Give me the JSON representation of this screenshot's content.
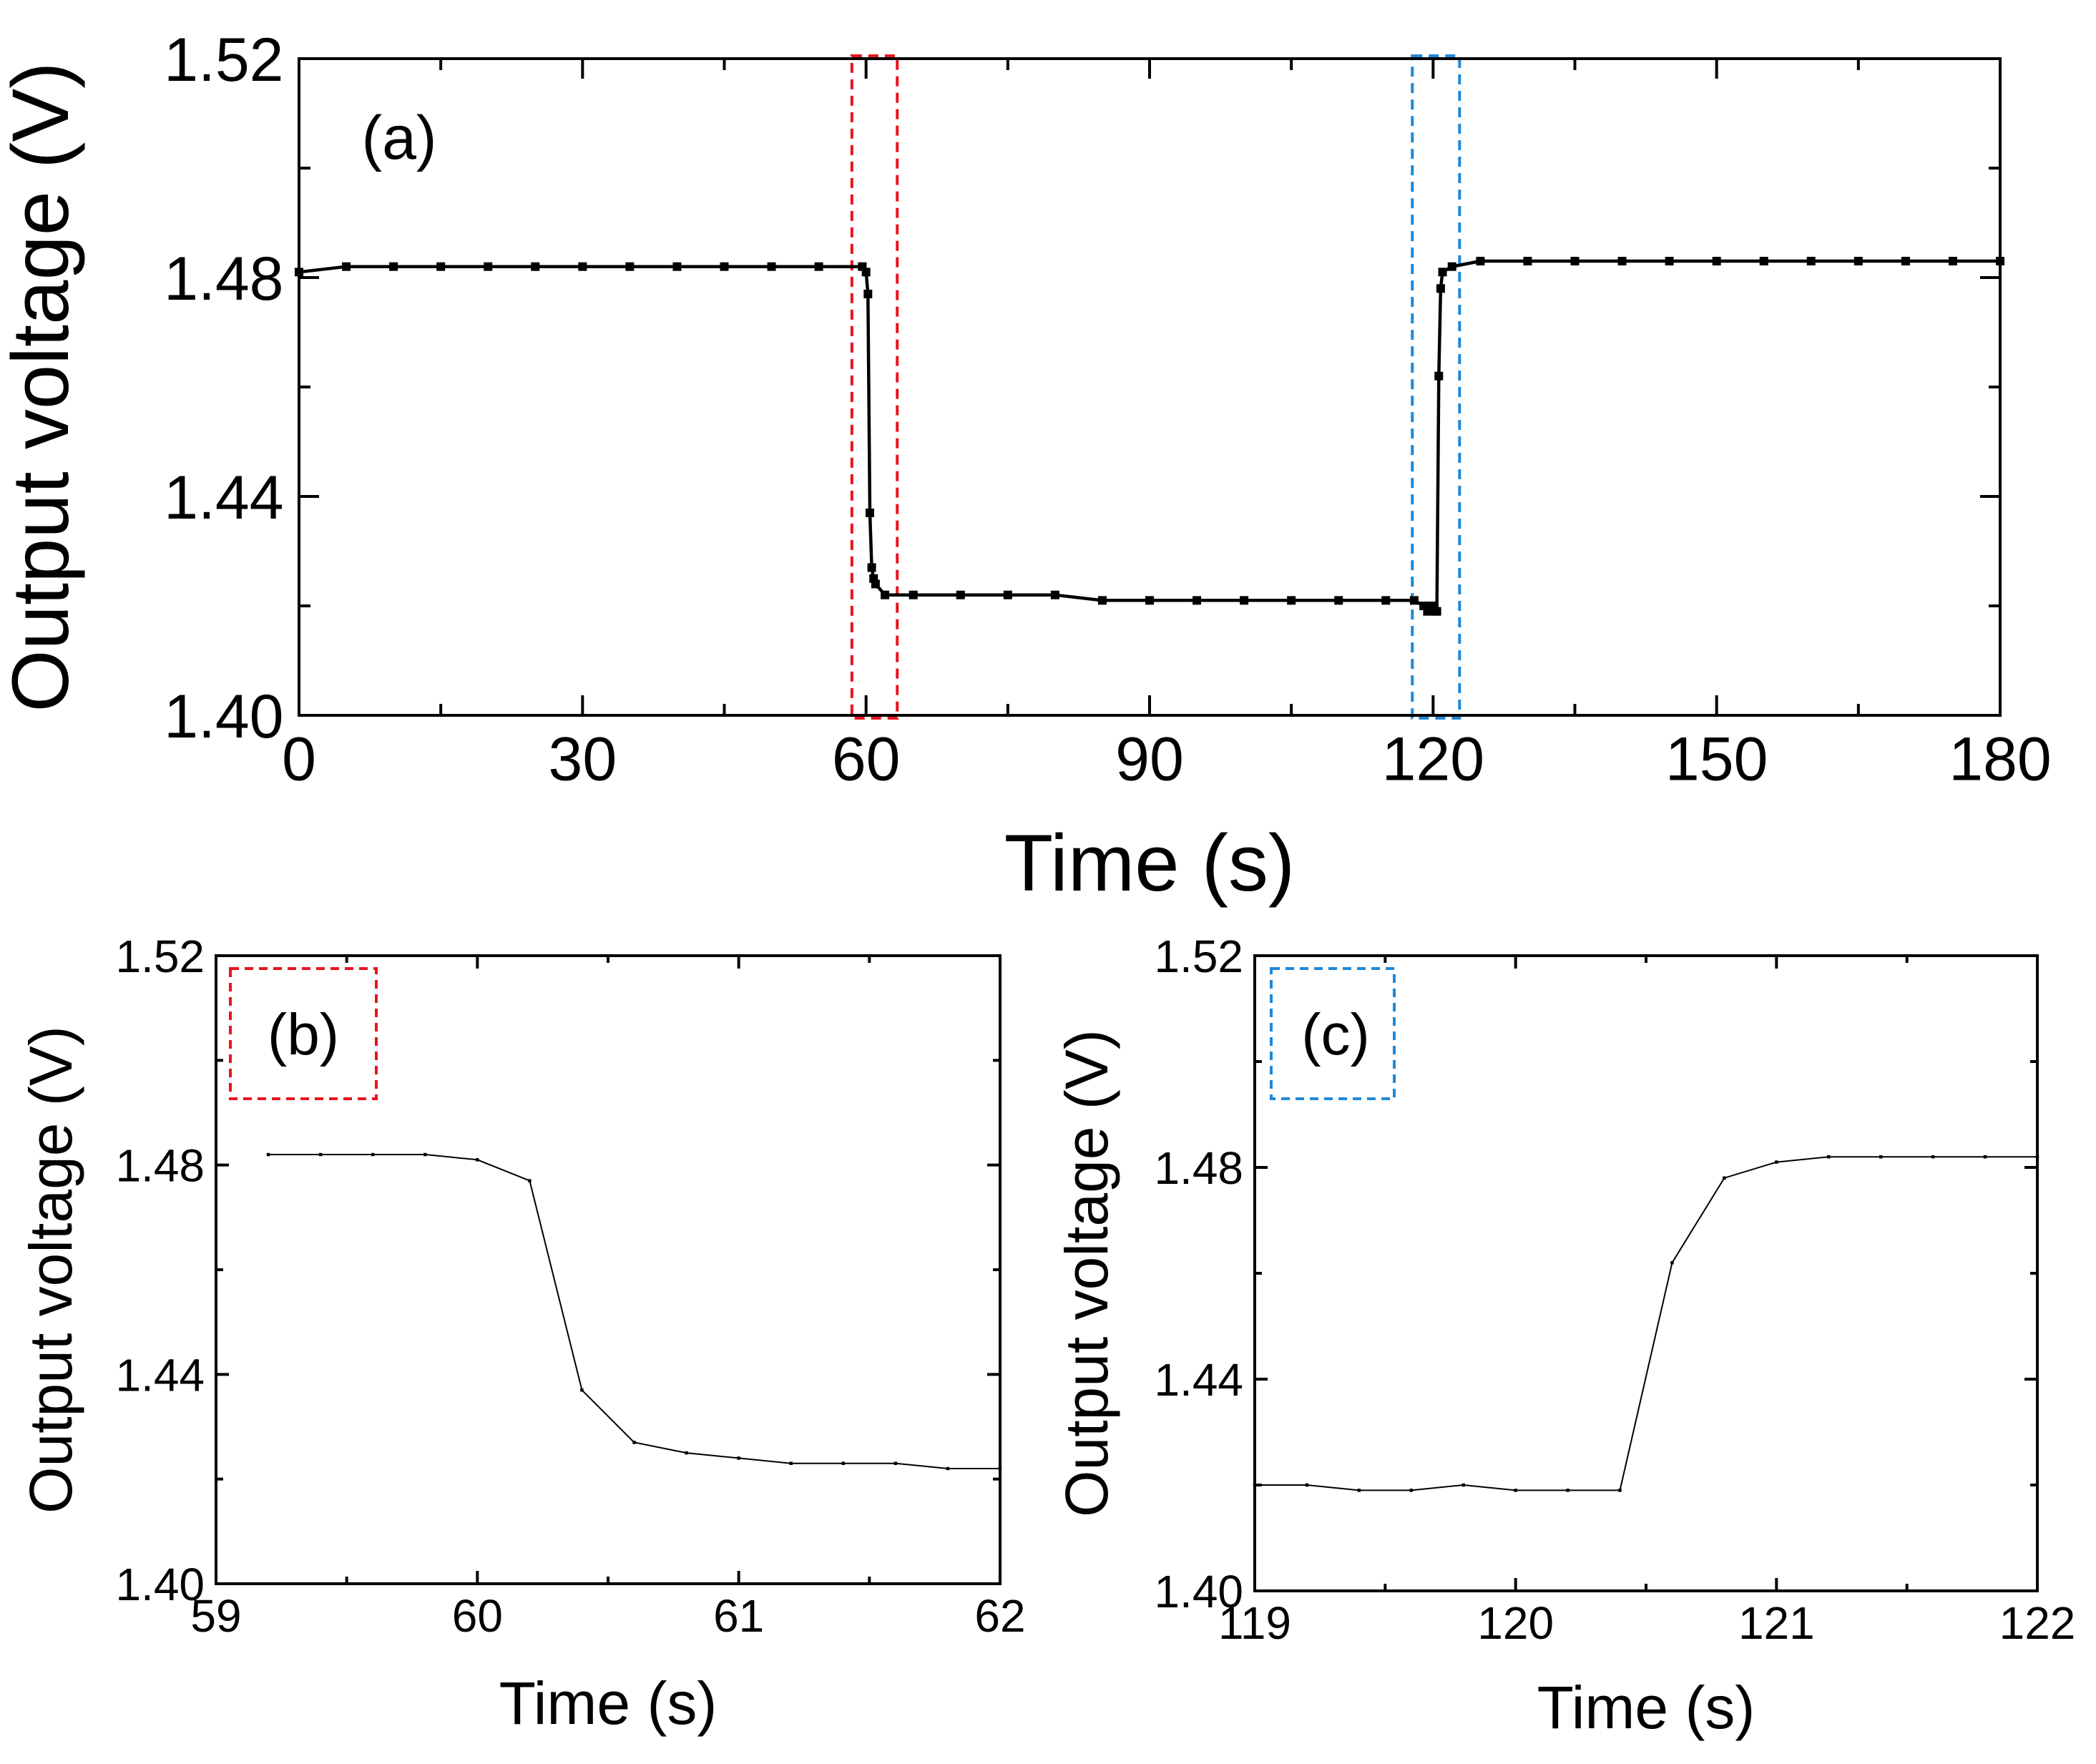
{
  "chart_data": [
    {
      "id": "a",
      "type": "line",
      "panel_label": "(a)",
      "xlabel": "Time (s)",
      "ylabel": "Output voltage (V)",
      "xlim": [
        0,
        180
      ],
      "ylim": [
        1.4,
        1.52
      ],
      "xticks": [
        0,
        30,
        60,
        90,
        120,
        150,
        180
      ],
      "xtick_labels": [
        "0",
        "30",
        "60",
        "90",
        "120",
        "150",
        "180"
      ],
      "yticks": [
        1.4,
        1.44,
        1.48,
        1.52
      ],
      "ytick_labels": [
        "1.40",
        "1.44",
        "1.48",
        "1.52"
      ],
      "series": [
        {
          "name": "Output voltage",
          "color": "#000000",
          "x": [
            0,
            5,
            10,
            15,
            20,
            25,
            30,
            35,
            40,
            45,
            50,
            55,
            59.6,
            60.0,
            60.2,
            60.4,
            60.6,
            60.8,
            61.0,
            62.0,
            65,
            70,
            75,
            80,
            85,
            90,
            95,
            100,
            105,
            110,
            115,
            118,
            119.0,
            119.4,
            119.8,
            120.2,
            120.4,
            120.6,
            120.8,
            121.0,
            122.0,
            125,
            130,
            135,
            140,
            145,
            150,
            155,
            160,
            165,
            170,
            175,
            180
          ],
          "y": [
            1.481,
            1.482,
            1.482,
            1.482,
            1.482,
            1.482,
            1.482,
            1.482,
            1.482,
            1.482,
            1.482,
            1.482,
            1.482,
            1.481,
            1.477,
            1.437,
            1.427,
            1.425,
            1.424,
            1.422,
            1.422,
            1.422,
            1.422,
            1.422,
            1.421,
            1.421,
            1.421,
            1.421,
            1.421,
            1.421,
            1.421,
            1.421,
            1.42,
            1.419,
            1.42,
            1.419,
            1.419,
            1.462,
            1.478,
            1.481,
            1.482,
            1.483,
            1.483,
            1.483,
            1.483,
            1.483,
            1.483,
            1.483,
            1.483,
            1.483,
            1.483,
            1.483,
            1.483
          ]
        }
      ],
      "highlights": [
        {
          "name": "red-region",
          "color": "#e8141e",
          "x_range": [
            58.5,
            63.3
          ],
          "linked_panel": "b"
        },
        {
          "name": "blue-region",
          "color": "#1e88d8",
          "x_range": [
            117.8,
            122.8
          ],
          "linked_panel": "c"
        }
      ]
    },
    {
      "id": "b",
      "type": "line",
      "panel_label": "(b)",
      "panel_label_box_color": "#e8141e",
      "xlabel": "Time (s)",
      "ylabel": "Output voltage (V)",
      "xlim": [
        59,
        62
      ],
      "ylim": [
        1.4,
        1.52
      ],
      "xticks": [
        59,
        60,
        61,
        62
      ],
      "xtick_labels": [
        "59",
        "60",
        "61",
        "62"
      ],
      "yticks": [
        1.4,
        1.44,
        1.48,
        1.52
      ],
      "ytick_labels": [
        "1.40",
        "1.44",
        "1.48",
        "1.52"
      ],
      "series": [
        {
          "name": "Output voltage",
          "color": "#000000",
          "x": [
            59.2,
            59.4,
            59.6,
            59.8,
            60.0,
            60.2,
            60.4,
            60.6,
            60.8,
            61.0,
            61.2,
            61.4,
            61.6,
            61.8,
            62.0
          ],
          "y": [
            1.482,
            1.482,
            1.482,
            1.482,
            1.481,
            1.477,
            1.437,
            1.427,
            1.425,
            1.424,
            1.423,
            1.423,
            1.423,
            1.422,
            1.422
          ]
        }
      ]
    },
    {
      "id": "c",
      "type": "line",
      "panel_label": "(c)",
      "panel_label_box_color": "#1e88d8",
      "xlabel": "Time (s)",
      "ylabel": "Output voltage (V)",
      "xlim": [
        119,
        122
      ],
      "ylim": [
        1.4,
        1.52
      ],
      "xticks": [
        119,
        120,
        121,
        122
      ],
      "xtick_labels": [
        "119",
        "120",
        "121",
        "122"
      ],
      "yticks": [
        1.4,
        1.44,
        1.48,
        1.52
      ],
      "ytick_labels": [
        "1.40",
        "1.44",
        "1.48",
        "1.52"
      ],
      "series": [
        {
          "name": "Output voltage",
          "color": "#000000",
          "x": [
            119.0,
            119.2,
            119.4,
            119.6,
            119.8,
            120.0,
            120.2,
            120.4,
            120.6,
            120.8,
            121.0,
            121.2,
            121.4,
            121.6,
            121.8,
            122.0
          ],
          "y": [
            1.42,
            1.42,
            1.419,
            1.419,
            1.42,
            1.419,
            1.419,
            1.419,
            1.462,
            1.478,
            1.481,
            1.482,
            1.482,
            1.482,
            1.482,
            1.482
          ]
        }
      ]
    }
  ]
}
